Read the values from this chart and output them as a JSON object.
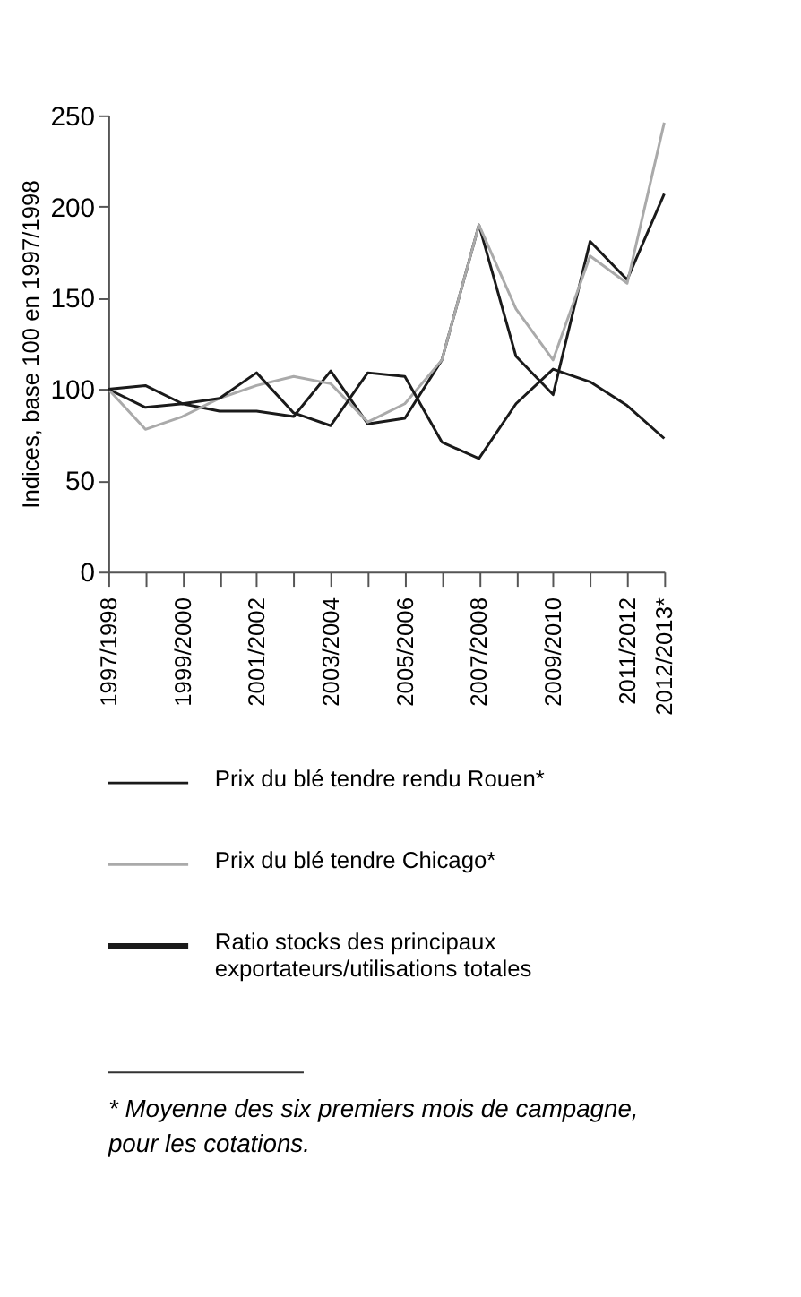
{
  "chart_data": {
    "type": "line",
    "ylabel": "Indices, base 100 en 1997/1998",
    "categories": [
      "1997/1998",
      null,
      "1999/2000",
      null,
      "2001/2002",
      null,
      "2003/2004",
      null,
      "2005/2006",
      null,
      "2007/2008",
      null,
      "2009/2010",
      null,
      "2011/2012",
      "2012/2013*"
    ],
    "series": [
      {
        "name": "Prix du blé tendre rendu Rouen*",
        "color": "#1a1a1a",
        "values": [
          100,
          90,
          92,
          88,
          88,
          85,
          110,
          81,
          84,
          116,
          190,
          118,
          97,
          181,
          160,
          207
        ]
      },
      {
        "name": "Prix du blé tendre Chicago*",
        "color": "#aaaaaa",
        "values": [
          100,
          78,
          85,
          95,
          102,
          107,
          103,
          82,
          92,
          116,
          190,
          144,
          116,
          173,
          158,
          246
        ]
      },
      {
        "name": "Ratio stocks des principaux\nexportateurs/utilisations totales",
        "color": "#1a1a1a",
        "values": [
          100,
          102,
          92,
          95,
          109,
          87,
          80,
          109,
          107,
          71,
          62,
          92,
          111,
          104,
          91,
          73
        ]
      }
    ],
    "ylim": [
      0,
      250
    ],
    "yticks": [
      0,
      50,
      100,
      150,
      200,
      250
    ],
    "grid": false,
    "legend": "bottom",
    "line_style": "solid",
    "marker": "none",
    "annotations": [
      "* Moyenne des six premiers mois de campagne, pour les cotations."
    ]
  }
}
